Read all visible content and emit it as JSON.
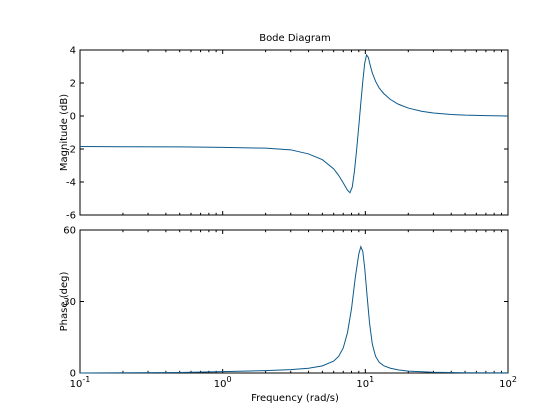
{
  "chart_data": {
    "type": "line",
    "title": "Bode Diagram",
    "series_color": "#0b5a8c",
    "grid": false,
    "xscale": "log",
    "x_tick_values": [
      0.1,
      1,
      10,
      100
    ],
    "x_tick_labels": [
      {
        "base": "10",
        "exp": "-1"
      },
      {
        "base": "10",
        "exp": "0"
      },
      {
        "base": "10",
        "exp": "1"
      },
      {
        "base": "10",
        "exp": "2"
      }
    ],
    "xlabel": "Frequency  (rad/s)",
    "xlim": [
      0.1,
      100
    ],
    "panels": [
      {
        "id": "magnitude",
        "ylabel": "Magnitude (dB)",
        "ylim": [
          -6,
          4
        ],
        "yticks": [
          4,
          2,
          0,
          -2,
          -4,
          -6
        ],
        "ytick_labels": [
          "4",
          "2",
          "0",
          "-2",
          "-4",
          "-6"
        ],
        "series": [
          {
            "x": [
              0.1,
              0.2,
              0.5,
              1,
              2,
              3,
              4,
              5,
              6,
              6.5,
              7,
              7.5,
              7.8,
              8.1,
              8.4,
              8.7,
              9.0,
              9.3,
              9.6,
              9.9,
              10.2,
              10.5,
              10.8,
              11.2,
              11.8,
              12.5,
              13.5,
              15,
              17,
              20,
              25,
              30,
              40,
              50,
              70,
              100
            ],
            "y": [
              -1.85,
              -1.86,
              -1.87,
              -1.9,
              -1.95,
              -2.05,
              -2.3,
              -2.65,
              -3.2,
              -3.6,
              -4.05,
              -4.5,
              -4.65,
              -4.3,
              -3.3,
              -2.0,
              -0.6,
              0.8,
              2.1,
              3.2,
              3.7,
              3.55,
              3.1,
              2.6,
              2.1,
              1.7,
              1.35,
              1.0,
              0.72,
              0.48,
              0.28,
              0.18,
              0.09,
              0.05,
              0.02,
              0.0
            ]
          }
        ]
      },
      {
        "id": "phase",
        "ylabel": "Phase (deg)",
        "ylim": [
          0,
          60
        ],
        "yticks": [
          60,
          30,
          0
        ],
        "ytick_labels": [
          "60",
          "30",
          "0"
        ],
        "series": [
          {
            "x": [
              0.1,
              0.5,
              1,
              2,
              3,
              4,
              5,
              6,
              6.5,
              7,
              7.5,
              8,
              8.5,
              9.0,
              9.3,
              9.6,
              9.9,
              10.3,
              10.7,
              11.2,
              11.8,
              12.5,
              13.5,
              15,
              17,
              20,
              30,
              50,
              100
            ],
            "y": [
              0.0,
              0.2,
              0.6,
              1.0,
              1.4,
              2.0,
              3.0,
              5.0,
              7.0,
              10.5,
              17.0,
              27.0,
              40.0,
              50.0,
              53.0,
              51.0,
              44.0,
              32.0,
              21.0,
              12.0,
              7.0,
              4.5,
              3.0,
              2.0,
              1.3,
              0.8,
              0.3,
              0.1,
              0.05
            ]
          }
        ]
      }
    ]
  }
}
